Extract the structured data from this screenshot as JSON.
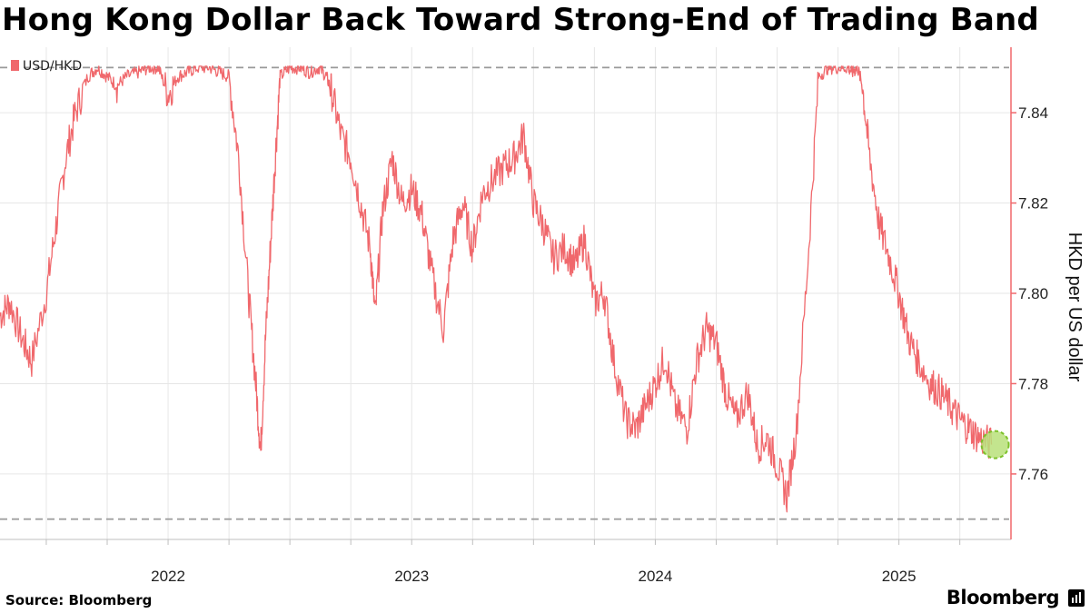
{
  "title": "Hong Kong Dollar Back Toward Strong-End of Trading Band",
  "source": "Source:  Bloomberg",
  "brand": "Bloomberg",
  "chart_data": {
    "type": "line",
    "legend": "USD/HKD",
    "ylabel": "HKD per US dollar",
    "ylim": [
      7.7455,
      7.8545
    ],
    "yticks": [
      "7.76",
      "7.78",
      "7.80",
      "7.82",
      "7.84"
    ],
    "xticks": [
      "2022",
      "2023",
      "2024",
      "2025"
    ],
    "xlim": [
      2021.31,
      2025.46
    ],
    "band_lines": [
      7.85,
      7.75
    ],
    "grid": true,
    "legend_position": "top-left",
    "series_color": "#f0686c",
    "highlight": {
      "x": 2025.38,
      "y": 7.7665,
      "color": "#b8e07a"
    },
    "series": [
      {
        "name": "USD/HKD",
        "x": [
          2021.31,
          2021.35,
          2021.4,
          2021.44,
          2021.5,
          2021.54,
          2021.58,
          2021.62,
          2021.67,
          2021.71,
          2021.75,
          2021.79,
          2021.83,
          2021.88,
          2021.92,
          2021.96,
          2022.0,
          2022.04,
          2022.08,
          2022.12,
          2022.17,
          2022.21,
          2022.25,
          2022.29,
          2022.33,
          2022.36,
          2022.38,
          2022.4,
          2022.42,
          2022.44,
          2022.46,
          2022.5,
          2022.54,
          2022.58,
          2022.62,
          2022.65,
          2022.67,
          2022.71,
          2022.75,
          2022.79,
          2022.83,
          2022.85,
          2022.88,
          2022.92,
          2022.96,
          2023.0,
          2023.04,
          2023.08,
          2023.13,
          2023.17,
          2023.21,
          2023.25,
          2023.29,
          2023.33,
          2023.38,
          2023.42,
          2023.46,
          2023.5,
          2023.54,
          2023.58,
          2023.63,
          2023.67,
          2023.71,
          2023.75,
          2023.79,
          2023.83,
          2023.88,
          2023.92,
          2023.96,
          2024.0,
          2024.04,
          2024.08,
          2024.13,
          2024.17,
          2024.21,
          2024.25,
          2024.29,
          2024.33,
          2024.38,
          2024.42,
          2024.46,
          2024.5,
          2024.54,
          2024.58,
          2024.63,
          2024.67,
          2024.71,
          2024.75,
          2024.79,
          2024.81,
          2024.83,
          2024.85,
          2024.88,
          2024.92,
          2024.96,
          2025.0,
          2025.04,
          2025.08,
          2025.13,
          2025.17,
          2025.21,
          2025.25,
          2025.29,
          2025.33,
          2025.38
        ],
        "values": [
          7.795,
          7.798,
          7.79,
          7.785,
          7.8,
          7.815,
          7.83,
          7.84,
          7.848,
          7.85,
          7.848,
          7.846,
          7.848,
          7.849,
          7.85,
          7.85,
          7.844,
          7.848,
          7.849,
          7.85,
          7.85,
          7.849,
          7.848,
          7.83,
          7.8,
          7.78,
          7.765,
          7.79,
          7.81,
          7.83,
          7.848,
          7.85,
          7.85,
          7.849,
          7.85,
          7.848,
          7.845,
          7.835,
          7.83,
          7.82,
          7.81,
          7.795,
          7.818,
          7.83,
          7.82,
          7.823,
          7.818,
          7.805,
          7.792,
          7.812,
          7.82,
          7.81,
          7.822,
          7.825,
          7.828,
          7.83,
          7.835,
          7.82,
          7.815,
          7.808,
          7.81,
          7.806,
          7.812,
          7.798,
          7.8,
          7.785,
          7.772,
          7.77,
          7.775,
          7.78,
          7.786,
          7.775,
          7.77,
          7.785,
          7.792,
          7.789,
          7.778,
          7.772,
          7.778,
          7.766,
          7.768,
          7.762,
          7.755,
          7.77,
          7.81,
          7.848,
          7.85,
          7.85,
          7.85,
          7.849,
          7.85,
          7.846,
          7.83,
          7.815,
          7.808,
          7.8,
          7.79,
          7.785,
          7.78,
          7.778,
          7.775,
          7.772,
          7.77,
          7.768,
          7.7665
        ]
      }
    ]
  }
}
